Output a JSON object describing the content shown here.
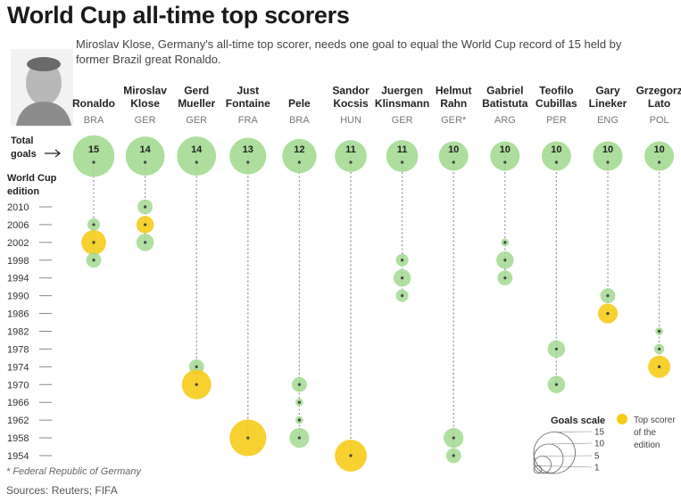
{
  "title": "World Cup all-time top scorers",
  "subtitle": "Miroslav Klose, Germany's all-time top scorer, needs one goal to equal the World Cup record of 15 held by former Brazil great Ronaldo.",
  "footnote": "* Federal Republic of Germany",
  "sources": "Sources: Reuters; FIFA",
  "colors": {
    "edition": "#9fd88c",
    "top_scorer": "#f5cc1a",
    "stem": "#9a9a9a",
    "dot": "#444444"
  },
  "chart_data": {
    "type": "scatter",
    "title": "World Cup all-time top scorers",
    "total_label": [
      "Total",
      "goals"
    ],
    "ylabel": [
      "World Cup",
      "edition"
    ],
    "yticks": [
      2010,
      2006,
      2002,
      1998,
      1994,
      1990,
      1986,
      1982,
      1978,
      1974,
      1970,
      1966,
      1962,
      1958,
      1954
    ],
    "ylim": [
      1954,
      2010
    ],
    "players": [
      {
        "name": [
          "Ronaldo"
        ],
        "country": "BRA",
        "total": 15,
        "editions": [
          {
            "year": 2006,
            "goals": 3
          },
          {
            "year": 2002,
            "goals": 8,
            "top": true
          },
          {
            "year": 1998,
            "goals": 4
          }
        ]
      },
      {
        "name": [
          "Miroslav",
          "Klose"
        ],
        "country": "GER",
        "total": 14,
        "editions": [
          {
            "year": 2010,
            "goals": 4
          },
          {
            "year": 2006,
            "goals": 5,
            "top": true
          },
          {
            "year": 2002,
            "goals": 5
          }
        ]
      },
      {
        "name": [
          "Gerd",
          "Mueller"
        ],
        "country": "GER",
        "total": 14,
        "editions": [
          {
            "year": 1974,
            "goals": 4
          },
          {
            "year": 1970,
            "goals": 10,
            "top": true
          }
        ]
      },
      {
        "name": [
          "Just",
          "Fontaine"
        ],
        "country": "FRA",
        "total": 13,
        "editions": [
          {
            "year": 1958,
            "goals": 13,
            "top": true
          }
        ]
      },
      {
        "name": [
          "Pele"
        ],
        "country": "BRA",
        "total": 12,
        "editions": [
          {
            "year": 1970,
            "goals": 4
          },
          {
            "year": 1966,
            "goals": 1
          },
          {
            "year": 1962,
            "goals": 1
          },
          {
            "year": 1958,
            "goals": 6
          }
        ]
      },
      {
        "name": [
          "Sandor",
          "Kocsis"
        ],
        "country": "HUN",
        "total": 11,
        "editions": [
          {
            "year": 1954,
            "goals": 11,
            "top": true
          }
        ]
      },
      {
        "name": [
          "Juergen",
          "Klinsmann"
        ],
        "country": "GER",
        "total": 11,
        "editions": [
          {
            "year": 1998,
            "goals": 3
          },
          {
            "year": 1994,
            "goals": 5
          },
          {
            "year": 1990,
            "goals": 3
          }
        ]
      },
      {
        "name": [
          "Helmut",
          "Rahn"
        ],
        "country": "GER*",
        "total": 10,
        "editions": [
          {
            "year": 1958,
            "goals": 6
          },
          {
            "year": 1954,
            "goals": 4
          }
        ]
      },
      {
        "name": [
          "Gabriel",
          "Batistuta"
        ],
        "country": "ARG",
        "total": 10,
        "editions": [
          {
            "year": 2002,
            "goals": 1
          },
          {
            "year": 1998,
            "goals": 5
          },
          {
            "year": 1994,
            "goals": 4
          }
        ]
      },
      {
        "name": [
          "Teofilo",
          "Cubillas"
        ],
        "country": "PER",
        "total": 10,
        "editions": [
          {
            "year": 1978,
            "goals": 5
          },
          {
            "year": 1970,
            "goals": 5
          }
        ]
      },
      {
        "name": [
          "Gary",
          "Lineker"
        ],
        "country": "ENG",
        "total": 10,
        "editions": [
          {
            "year": 1990,
            "goals": 4
          },
          {
            "year": 1986,
            "goals": 6,
            "top": true
          }
        ]
      },
      {
        "name": [
          "Grzegorz",
          "Lato"
        ],
        "country": "POL",
        "total": 10,
        "editions": [
          {
            "year": 1982,
            "goals": 1
          },
          {
            "year": 1978,
            "goals": 2
          },
          {
            "year": 1974,
            "goals": 7,
            "top": true
          }
        ]
      }
    ],
    "scale": {
      "title": "Goals scale",
      "values": [
        15,
        10,
        5,
        1
      ]
    },
    "legend": {
      "top_scorer": [
        "Top scorer",
        "of the",
        "edition"
      ]
    }
  }
}
